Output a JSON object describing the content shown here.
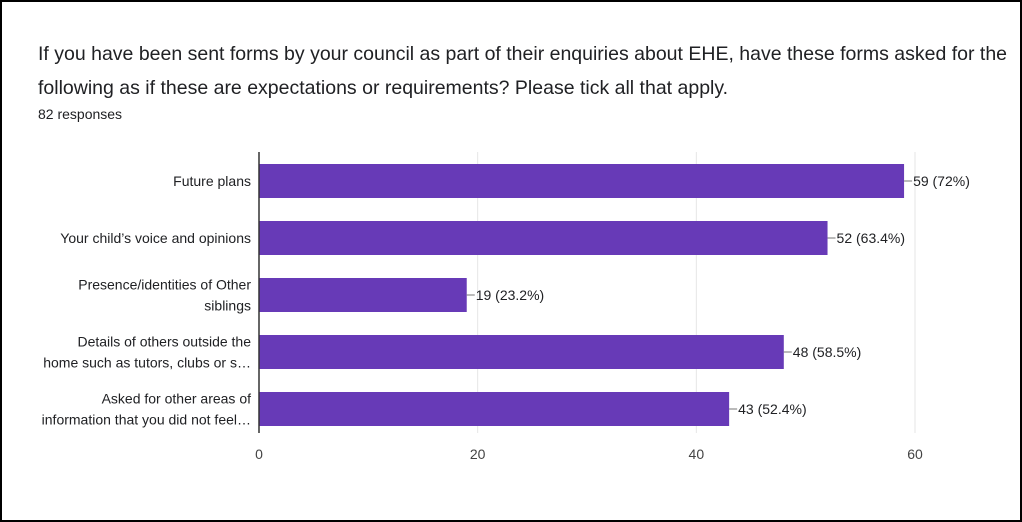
{
  "header": {
    "question": "If you have been sent forms by your council as part of their enquiries about EHE, have these forms asked for the following as if these are expectations or requirements? Please tick all that apply.",
    "responses": "82 responses"
  },
  "colors": {
    "bar": "#673ab7",
    "grid": "#e6e6e6",
    "axis": "#333333"
  },
  "chart_data": {
    "type": "bar",
    "orientation": "horizontal",
    "categories": [
      [
        "Future plans"
      ],
      [
        "Your child’s voice and opinions"
      ],
      [
        "Presence/identities of Other",
        "siblings"
      ],
      [
        "Details of others outside the",
        "home such as tutors, clubs or s…"
      ],
      [
        "Asked for other areas of",
        "information that you did not feel…"
      ]
    ],
    "values": [
      59,
      52,
      19,
      48,
      43
    ],
    "data_labels": [
      "59 (72%)",
      "52 (63.4%)",
      "19 (23.2%)",
      "48 (58.5%)",
      "43 (52.4%)"
    ],
    "xlim": [
      0,
      60
    ],
    "xticks": [
      0,
      20,
      40,
      60
    ],
    "grid": true,
    "legend": "none"
  }
}
